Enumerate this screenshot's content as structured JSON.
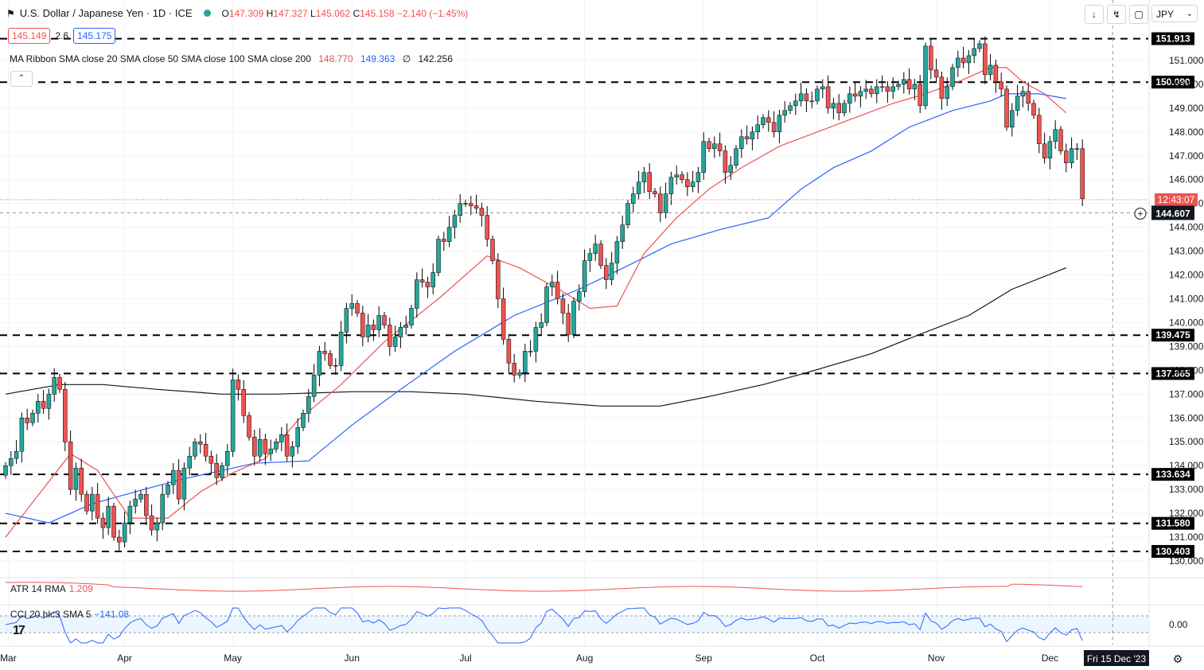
{
  "header": {
    "title": "U.S. Dollar / Japanese Yen · 1D · ICE",
    "open_label": "O",
    "open": "147.309",
    "high_label": "H",
    "high": "147.327",
    "low_label": "L",
    "low": "145.062",
    "close_label": "C",
    "close": "145.158",
    "change": "−2.140 (−1.45%)",
    "status_color": "#26a69a"
  },
  "trade": {
    "sell": "145.149",
    "spread": "2.6",
    "buy": "145.175"
  },
  "ma_ribbon": {
    "label": "MA Ribbon SMA close 20 SMA close 50 SMA close 100 SMA close 200",
    "v20": "148.770",
    "v50": "149.363",
    "sep": "∅",
    "v200": "142.256"
  },
  "atr": {
    "label": "ATR 14 RMA",
    "value": "1.209"
  },
  "cci": {
    "label": "CCI 20 hlc3 SMA 5",
    "value": "−141.08",
    "axis_label": "0.00"
  },
  "toolbar": {
    "icons": [
      "arrow-down-icon",
      "compress-icon",
      "fullscreen-icon"
    ]
  },
  "currency": {
    "value": "JPY"
  },
  "colors": {
    "up": "#26a69a",
    "down": "#ef5350",
    "sma20": "#ef5350",
    "sma50": "#2962ff",
    "sma200": "#131722",
    "levels": "#000000"
  },
  "chart_data": {
    "type": "candlestick",
    "title": "U.S. Dollar / Japanese Yen · 1D · ICE",
    "ylim": [
      129.5,
      152.3
    ],
    "yticks": [
      "130.000",
      "131.000",
      "132.000",
      "133.000",
      "134.000",
      "135.000",
      "136.000",
      "137.000",
      "138.000",
      "139.000",
      "140.000",
      "141.000",
      "142.000",
      "143.000",
      "144.000",
      "145.000",
      "146.000",
      "147.000",
      "148.000",
      "149.000",
      "150.000",
      "151.000"
    ],
    "x_labels": [
      "Mar",
      "Apr",
      "May",
      "Jun",
      "Jul",
      "Aug",
      "Sep",
      "Oct",
      "Nov",
      "Dec"
    ],
    "x_label_positions": [
      0.5,
      22,
      42,
      64,
      85,
      107,
      129,
      150,
      172,
      193
    ],
    "horizontal_levels": [
      "151.913",
      "150.090",
      "139.475",
      "137.865",
      "133.634",
      "131.580",
      "130.403"
    ],
    "current_price_label": "12:43:07",
    "current_price": 145.158,
    "crosshair_price": "144.607",
    "crosshair_date": "Fri 15 Dec '23",
    "closes": [
      134.0,
      134.3,
      134.6,
      136.0,
      135.8,
      136.2,
      136.7,
      136.4,
      137.0,
      137.7,
      137.2,
      135.0,
      133.0,
      133.9,
      132.8,
      132.1,
      132.8,
      131.8,
      131.4,
      132.3,
      131.0,
      130.8,
      131.6,
      132.3,
      132.6,
      132.8,
      131.9,
      131.3,
      131.6,
      132.8,
      133.2,
      133.8,
      132.6,
      133.9,
      134.4,
      135.0,
      134.9,
      134.4,
      134.1,
      133.5,
      134.0,
      134.6,
      137.6,
      137.2,
      136.1,
      135.2,
      134.4,
      135.1,
      134.5,
      134.7,
      135.0,
      135.3,
      134.4,
      134.8,
      135.6,
      136.2,
      136.9,
      137.8,
      138.8,
      138.7,
      138.2,
      138.2,
      139.6,
      140.6,
      140.8,
      140.4,
      139.4,
      139.9,
      139.7,
      140.3,
      139.9,
      139.0,
      139.4,
      139.8,
      139.9,
      140.6,
      141.8,
      141.7,
      141.5,
      142.1,
      143.5,
      143.4,
      144.0,
      144.5,
      145.0,
      145.0,
      144.9,
      144.8,
      144.5,
      143.5,
      142.6,
      141.0,
      139.3,
      138.3,
      137.8,
      137.9,
      138.8,
      138.8,
      139.8,
      140.0,
      141.5,
      141.7,
      141.0,
      140.4,
      139.5,
      140.9,
      141.3,
      142.6,
      142.9,
      143.3,
      142.4,
      141.8,
      142.5,
      143.4,
      144.1,
      145.0,
      145.4,
      145.9,
      146.3,
      145.5,
      145.4,
      144.6,
      145.4,
      146.1,
      146.2,
      146.0,
      145.7,
      145.9,
      146.3,
      147.6,
      147.3,
      147.5,
      147.2,
      146.3,
      146.6,
      147.3,
      147.8,
      147.7,
      148.0,
      148.3,
      148.6,
      148.4,
      148.0,
      148.7,
      148.9,
      149.1,
      149.3,
      149.6,
      149.3,
      149.3,
      149.8,
      149.9,
      149.0,
      149.2,
      148.8,
      149.2,
      149.6,
      149.5,
      149.7,
      149.8,
      149.6,
      149.9,
      149.9,
      149.7,
      149.9,
      150.0,
      150.2,
      149.8,
      150.0,
      149.1,
      151.6,
      150.6,
      150.3,
      149.4,
      149.9,
      150.7,
      151.1,
      150.9,
      151.2,
      151.5,
      151.7,
      150.4,
      150.8,
      150.1,
      149.8,
      148.2,
      148.9,
      149.5,
      149.7,
      149.2,
      148.7,
      147.5,
      146.9,
      147.6,
      148.1,
      147.2,
      146.7,
      147.3,
      147.3,
      145.2
    ],
    "sma20": [
      [
        0,
        131.0
      ],
      [
        12,
        134.5
      ],
      [
        17,
        133.8
      ],
      [
        23,
        131.8
      ],
      [
        30,
        131.8
      ],
      [
        36,
        132.9
      ],
      [
        42,
        133.7
      ],
      [
        48,
        134.3
      ],
      [
        54,
        135.9
      ],
      [
        62,
        137.4
      ],
      [
        70,
        139.2
      ],
      [
        80,
        141.0
      ],
      [
        89,
        142.8
      ],
      [
        95,
        142.3
      ],
      [
        103,
        141.3
      ],
      [
        108,
        140.6
      ],
      [
        113,
        140.7
      ],
      [
        118,
        142.9
      ],
      [
        124,
        144.4
      ],
      [
        130,
        145.6
      ],
      [
        136,
        146.5
      ],
      [
        143,
        147.4
      ],
      [
        150,
        148.0
      ],
      [
        157,
        148.6
      ],
      [
        164,
        149.2
      ],
      [
        170,
        149.6
      ],
      [
        176,
        150.1
      ],
      [
        182,
        150.7
      ],
      [
        185,
        150.7
      ],
      [
        188,
        150.1
      ],
      [
        192,
        149.6
      ],
      [
        196,
        148.8
      ]
    ],
    "sma50": [
      [
        0,
        132.0
      ],
      [
        8,
        131.6
      ],
      [
        16,
        132.4
      ],
      [
        24,
        132.9
      ],
      [
        32,
        133.4
      ],
      [
        40,
        133.8
      ],
      [
        46,
        134.1
      ],
      [
        56,
        134.2
      ],
      [
        64,
        135.7
      ],
      [
        73,
        137.2
      ],
      [
        83,
        138.8
      ],
      [
        94,
        140.3
      ],
      [
        106,
        141.4
      ],
      [
        116,
        142.5
      ],
      [
        123,
        143.3
      ],
      [
        132,
        143.9
      ],
      [
        141,
        144.4
      ],
      [
        147,
        145.6
      ],
      [
        153,
        146.5
      ],
      [
        160,
        147.2
      ],
      [
        167,
        148.2
      ],
      [
        175,
        148.9
      ],
      [
        182,
        149.3
      ],
      [
        185,
        149.6
      ],
      [
        191,
        149.6
      ],
      [
        196,
        149.4
      ]
    ],
    "sma200": [
      [
        0,
        137.0
      ],
      [
        10,
        137.4
      ],
      [
        18,
        137.4
      ],
      [
        28,
        137.2
      ],
      [
        40,
        137.0
      ],
      [
        50,
        137.0
      ],
      [
        64,
        137.1
      ],
      [
        75,
        137.1
      ],
      [
        85,
        137.0
      ],
      [
        98,
        136.7
      ],
      [
        110,
        136.5
      ],
      [
        121,
        136.5
      ],
      [
        130,
        136.9
      ],
      [
        140,
        137.4
      ],
      [
        148,
        137.9
      ],
      [
        160,
        138.7
      ],
      [
        170,
        139.6
      ],
      [
        178,
        140.3
      ],
      [
        186,
        141.4
      ],
      [
        196,
        142.3
      ]
    ]
  }
}
